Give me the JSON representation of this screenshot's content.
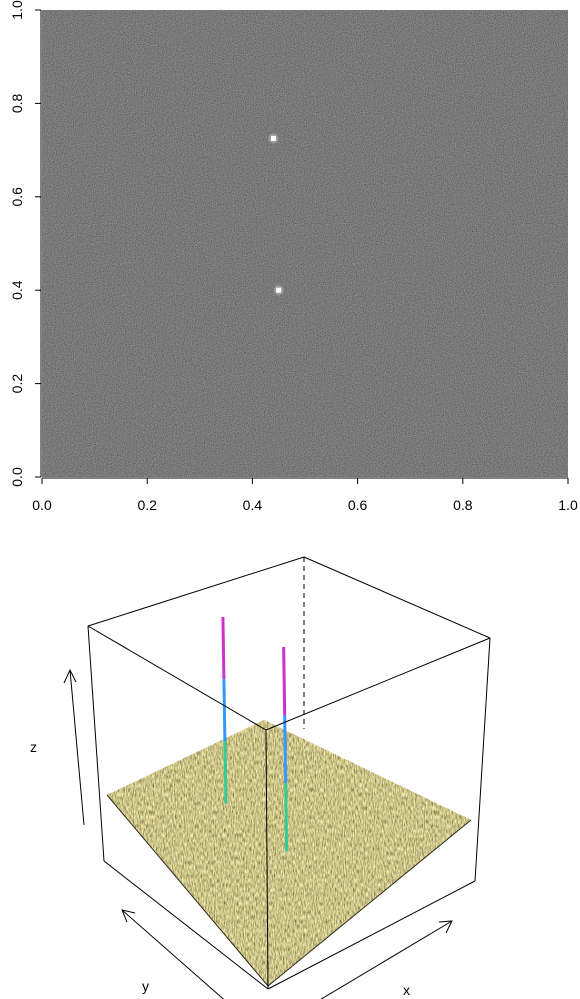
{
  "chart_data": [
    {
      "type": "heatmap",
      "title": "",
      "xlabel": "",
      "ylabel": "",
      "xlim": [
        0,
        1
      ],
      "ylim": [
        0,
        1
      ],
      "x_ticks": [
        "0.0",
        "0.2",
        "0.4",
        "0.6",
        "0.8",
        "1.0"
      ],
      "y_ticks": [
        "0.0",
        "0.2",
        "0.4",
        "0.6",
        "0.8",
        "1.0"
      ],
      "background": "noise",
      "colormap": [
        "#000000",
        "#ffffff"
      ],
      "peaks": [
        {
          "x": 0.44,
          "y": 0.725
        },
        {
          "x": 0.45,
          "y": 0.4
        }
      ]
    },
    {
      "type": "surface",
      "title": "",
      "axis_labels": {
        "x": "x",
        "y": "y",
        "z": "z"
      },
      "surface_color": "#e6dc8a",
      "peak_colors": [
        "#cc33cc",
        "#3399ff",
        "#33cc99"
      ],
      "peaks": [
        {
          "x": 0.44,
          "y": 0.725
        },
        {
          "x": 0.45,
          "y": 0.4
        }
      ]
    }
  ]
}
